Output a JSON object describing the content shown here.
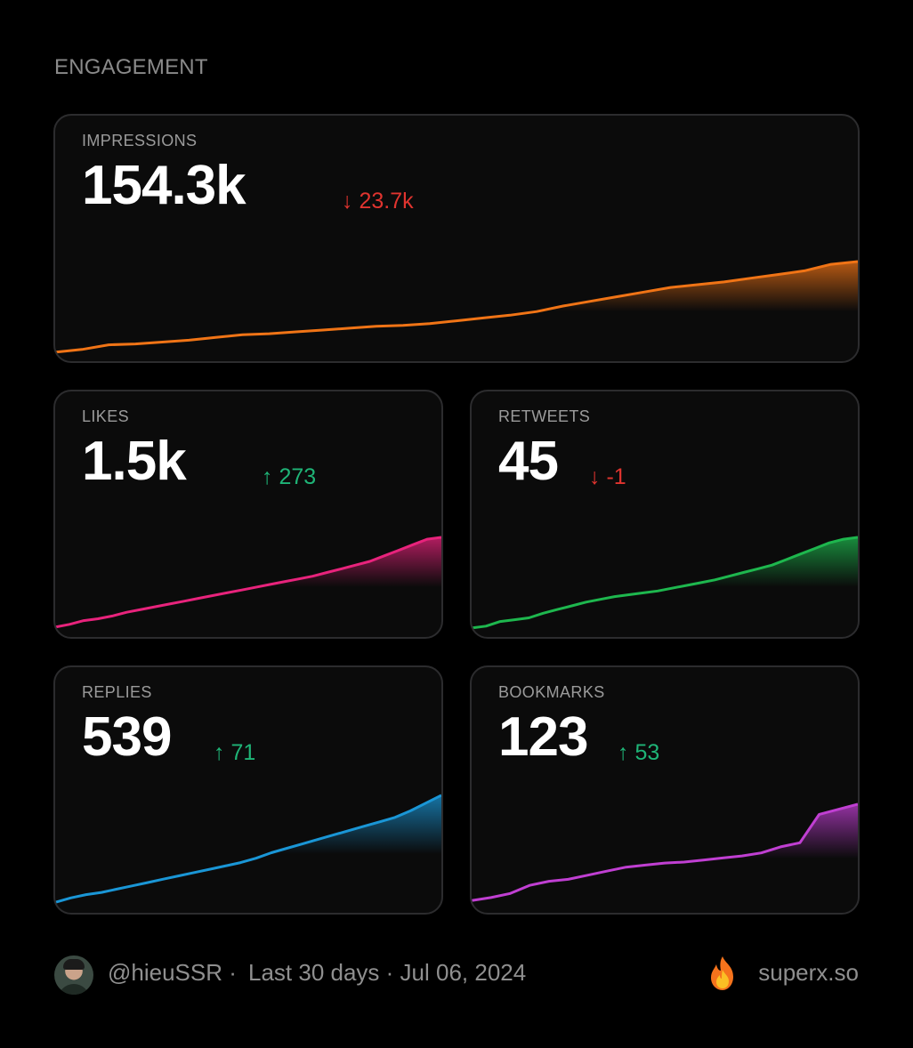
{
  "section_title": "ENGAGEMENT",
  "cards": {
    "impressions": {
      "label": "IMPRESSIONS",
      "value": "154.3k",
      "delta": "↓ 23.7k",
      "color": "#f07416",
      "series": [
        2,
        5,
        10,
        11,
        13,
        15,
        18,
        21,
        22,
        24,
        26,
        28,
        30,
        31,
        33,
        36,
        39,
        42,
        46,
        52,
        57,
        62,
        67,
        72,
        75,
        78,
        82,
        86,
        90,
        97,
        100
      ]
    },
    "likes": {
      "label": "LIKES",
      "value": "1.5k",
      "delta": "↑ 273",
      "color": "#e8237c",
      "series": [
        3,
        6,
        10,
        12,
        15,
        19,
        22,
        25,
        28,
        31,
        34,
        37,
        40,
        43,
        46,
        49,
        52,
        55,
        58,
        62,
        66,
        70,
        74,
        80,
        86,
        92,
        98,
        100
      ]
    },
    "retweets": {
      "label": "RETWEETS",
      "value": "45",
      "delta": "↓ -1",
      "color": "#1eb74e",
      "series": [
        2,
        4,
        9,
        11,
        13,
        18,
        22,
        26,
        30,
        33,
        36,
        38,
        40,
        42,
        45,
        48,
        51,
        54,
        58,
        62,
        66,
        70,
        76,
        82,
        88,
        94,
        98,
        100
      ]
    },
    "replies": {
      "label": "REPLIES",
      "value": "539",
      "delta": "↑ 71",
      "color": "#1a96d6",
      "series": [
        3,
        7,
        10,
        12,
        15,
        18,
        21,
        24,
        27,
        30,
        33,
        36,
        39,
        43,
        48,
        52,
        56,
        60,
        64,
        68,
        72,
        76,
        80,
        86,
        93,
        100
      ]
    },
    "bookmarks": {
      "label": "BOOKMARKS",
      "value": "123",
      "delta": "↑ 53",
      "color": "#c03fd2",
      "series": [
        5,
        8,
        12,
        20,
        24,
        26,
        30,
        34,
        38,
        40,
        42,
        43,
        45,
        47,
        49,
        52,
        58,
        62,
        90,
        95,
        100
      ]
    }
  },
  "footer": {
    "handle": "@hieuSSR ·",
    "meta": "Last 30 days · Jul 06, 2024",
    "brand": "superx.so"
  }
}
